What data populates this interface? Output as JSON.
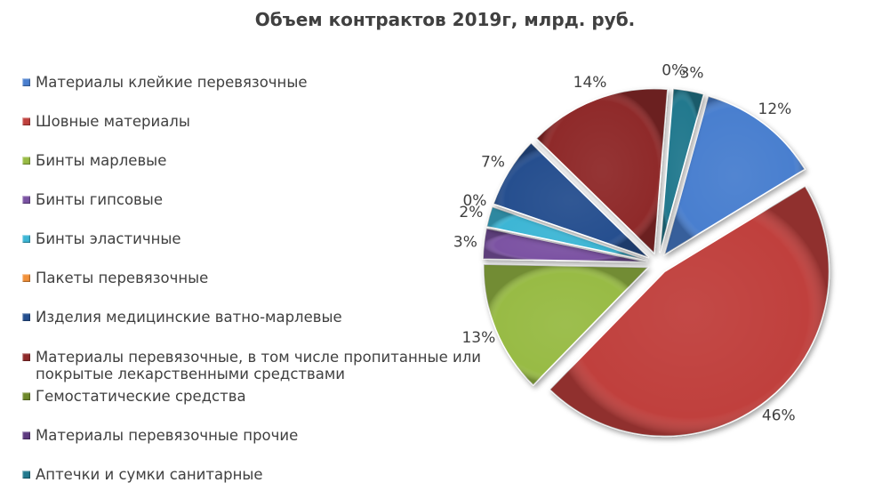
{
  "chart_data": {
    "type": "pie",
    "title": "Объем контрактов 2019г, млрд. руб.",
    "legend_position": "left",
    "slices": [
      {
        "name": "Материалы клейкие перевязочные",
        "value": 12,
        "label": "12%",
        "color": "#4a7fcf"
      },
      {
        "name": "Шовные материалы",
        "value": 46,
        "label": "46%",
        "color": "#c0413d"
      },
      {
        "name": "Бинты марлевые",
        "value": 13,
        "label": "13%",
        "color": "#98bb44"
      },
      {
        "name": "Бинты гипсовые",
        "value": 3,
        "label": "3%",
        "color": "#7b53a3"
      },
      {
        "name": "Бинты эластичные",
        "value": 2,
        "label": "2%",
        "color": "#3cb6d5"
      },
      {
        "name": "Пакеты перевязочные",
        "value": 0,
        "label": "0%",
        "color": "#f2913a"
      },
      {
        "name": "Изделия медицинские ватно-марлевые",
        "value": 7,
        "label": "7%",
        "color": "#254f8f"
      },
      {
        "name": "Материалы перевязочные, в том числе пропитанные или покрытые лекарственными средствами",
        "value": 14,
        "label": "14%",
        "color": "#8f2a2a"
      },
      {
        "name": "Гемостатические средства",
        "value": 0,
        "label": "",
        "color": "#6f8a2b"
      },
      {
        "name": "Материалы перевязочные прочие",
        "value": 0,
        "label": "0%",
        "color": "#5e3a80"
      },
      {
        "name": "Аптечки и сумки санитарные",
        "value": 3,
        "label": "3%",
        "color": "#21798e"
      }
    ]
  }
}
